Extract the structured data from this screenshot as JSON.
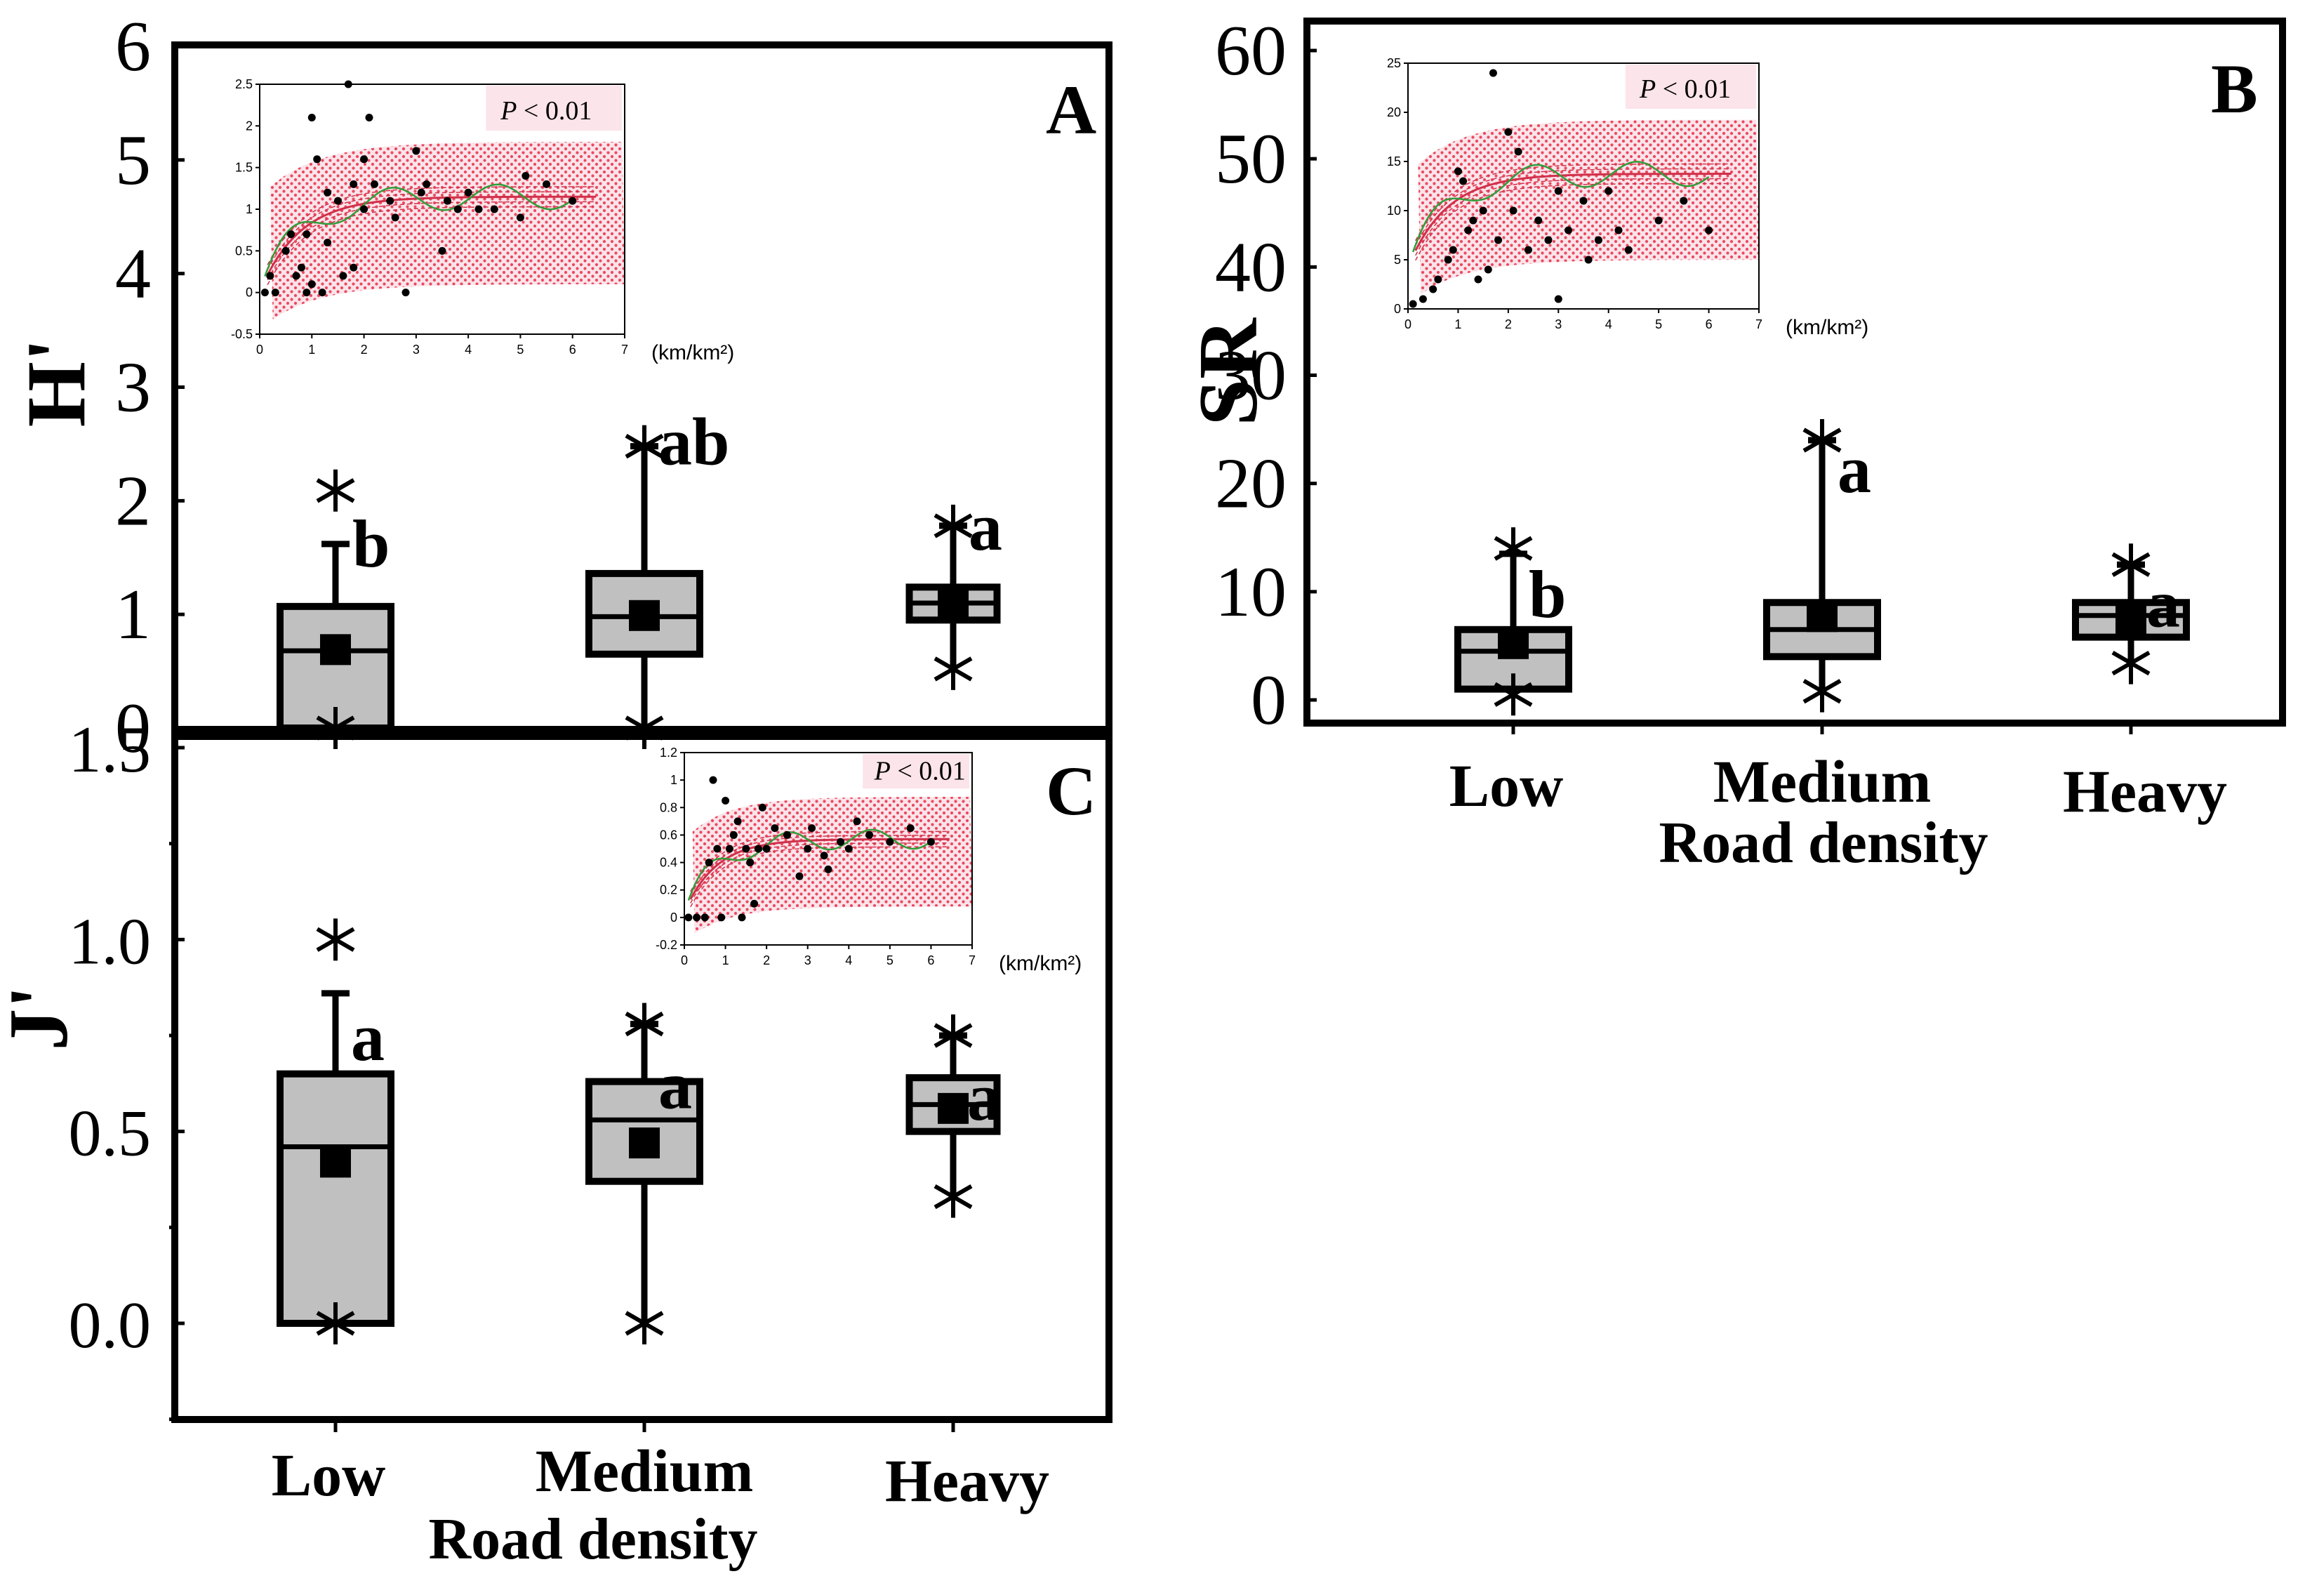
{
  "chart_data": [
    {
      "panel": "A",
      "type": "box",
      "ylabel": "H'",
      "ylim": [
        0,
        6
      ],
      "yticks": [
        0,
        1,
        2,
        3,
        4,
        5,
        6
      ],
      "xlabel": "",
      "categories": [
        "Low",
        "Medium",
        "Heavy"
      ],
      "boxes": [
        {
          "q1": 0.0,
          "median": 0.68,
          "q3": 1.07,
          "mean": 0.69,
          "whisker_low": 0.0,
          "whisker_high": 1.62,
          "min": 0.0,
          "max": 2.09,
          "letter": "b"
        },
        {
          "q1": 0.65,
          "median": 0.98,
          "q3": 1.36,
          "mean": 0.99,
          "whisker_low": 0.0,
          "whisker_high": 2.48,
          "min": 0.0,
          "max": 2.48,
          "letter": "ab"
        },
        {
          "q1": 0.95,
          "median": 1.1,
          "q3": 1.24,
          "mean": 1.1,
          "whisker_low": 0.52,
          "whisker_high": 1.78,
          "min": 0.52,
          "max": 1.78,
          "letter": "a"
        }
      ],
      "inset": {
        "xlim": [
          0,
          7
        ],
        "ylim": [
          -0.5,
          2.5
        ],
        "xticks": [
          0,
          1,
          2,
          3,
          4,
          5,
          6,
          7
        ],
        "yticks": [
          -0.5,
          0,
          0.5,
          1,
          1.5,
          2,
          2.5
        ],
        "xunit": "(km/km²)",
        "pvalue": "< 0.01",
        "points": [
          [
            0.1,
            0
          ],
          [
            0.2,
            0.2
          ],
          [
            0.3,
            0
          ],
          [
            0.5,
            0.5
          ],
          [
            0.6,
            0.7
          ],
          [
            0.7,
            0.2
          ],
          [
            0.8,
            0.3
          ],
          [
            0.9,
            0.7
          ],
          [
            0.9,
            0
          ],
          [
            1.0,
            0.1
          ],
          [
            1.0,
            2.1
          ],
          [
            1.1,
            1.6
          ],
          [
            1.2,
            0
          ],
          [
            1.3,
            0.6
          ],
          [
            1.3,
            1.2
          ],
          [
            1.5,
            1.1
          ],
          [
            1.6,
            0.2
          ],
          [
            1.7,
            2.5
          ],
          [
            1.8,
            0.3
          ],
          [
            1.8,
            1.3
          ],
          [
            2.0,
            1.0
          ],
          [
            2.0,
            1.6
          ],
          [
            2.1,
            2.1
          ],
          [
            2.2,
            1.3
          ],
          [
            2.5,
            1.1
          ],
          [
            2.6,
            0.9
          ],
          [
            2.8,
            0
          ],
          [
            3.0,
            1.7
          ],
          [
            3.1,
            1.2
          ],
          [
            3.2,
            1.3
          ],
          [
            3.5,
            0.5
          ],
          [
            3.6,
            1.1
          ],
          [
            3.8,
            1.0
          ],
          [
            4.0,
            1.2
          ],
          [
            4.2,
            1.0
          ],
          [
            4.5,
            1.0
          ],
          [
            5.0,
            0.9
          ],
          [
            5.1,
            1.4
          ],
          [
            5.5,
            1.3
          ],
          [
            6.0,
            1.1
          ]
        ]
      }
    },
    {
      "panel": "B",
      "type": "box",
      "ylabel": "SR",
      "ylim": [
        0,
        60
      ],
      "yticks": [
        0,
        10,
        20,
        30,
        40,
        50,
        60
      ],
      "xlabel": "Road density",
      "categories": [
        "Low",
        "Medium",
        "Heavy"
      ],
      "boxes": [
        {
          "q1": 1.0,
          "median": 4.5,
          "q3": 6.5,
          "mean": 5.2,
          "whisker_low": 0.5,
          "whisker_high": 13.5,
          "min": 0.5,
          "max": 14.0,
          "letter": "b"
        },
        {
          "q1": 4.0,
          "median": 6.5,
          "q3": 9.0,
          "mean": 7.7,
          "whisker_low": 0.8,
          "whisker_high": 24.0,
          "min": 0.8,
          "max": 24.0,
          "letter": "a"
        },
        {
          "q1": 5.8,
          "median": 7.8,
          "q3": 9.0,
          "mean": 7.3,
          "whisker_low": 3.4,
          "whisker_high": 12.5,
          "min": 3.4,
          "max": 12.5,
          "letter": "a"
        }
      ],
      "inset": {
        "xlim": [
          0,
          7
        ],
        "ylim": [
          0,
          25
        ],
        "xticks": [
          0,
          1,
          2,
          3,
          4,
          5,
          6,
          7
        ],
        "yticks": [
          0,
          5,
          10,
          15,
          20,
          25
        ],
        "xunit": "(km/km²)",
        "pvalue": "< 0.01",
        "points": [
          [
            0.1,
            0.5
          ],
          [
            0.3,
            1
          ],
          [
            0.5,
            2
          ],
          [
            0.6,
            3
          ],
          [
            0.8,
            5
          ],
          [
            0.9,
            6
          ],
          [
            1.0,
            14
          ],
          [
            1.1,
            13
          ],
          [
            1.2,
            8
          ],
          [
            1.3,
            9
          ],
          [
            1.4,
            3
          ],
          [
            1.5,
            10
          ],
          [
            1.6,
            4
          ],
          [
            1.7,
            24
          ],
          [
            1.8,
            7
          ],
          [
            2.0,
            18
          ],
          [
            2.1,
            10
          ],
          [
            2.2,
            16
          ],
          [
            2.4,
            6
          ],
          [
            2.6,
            9
          ],
          [
            2.8,
            7
          ],
          [
            3.0,
            1
          ],
          [
            3.0,
            12
          ],
          [
            3.2,
            8
          ],
          [
            3.5,
            11
          ],
          [
            3.6,
            5
          ],
          [
            3.8,
            7
          ],
          [
            4.0,
            12
          ],
          [
            4.2,
            8
          ],
          [
            4.4,
            6
          ],
          [
            5.0,
            9
          ],
          [
            5.5,
            11
          ],
          [
            6.0,
            8
          ]
        ]
      }
    },
    {
      "panel": "C",
      "type": "box",
      "ylabel": "J'",
      "ylim": [
        -0.25,
        1.5
      ],
      "yticks": [
        0.0,
        0.5,
        1.0,
        1.5
      ],
      "yticklabels": [
        "0.0",
        "0.5",
        "1.0",
        "1.5"
      ],
      "xlabel": "Road density",
      "categories": [
        "Low",
        "Medium",
        "Heavy"
      ],
      "boxes": [
        {
          "q1": 0.0,
          "median": 0.46,
          "q3": 0.65,
          "mean": 0.42,
          "whisker_low": 0.0,
          "whisker_high": 0.86,
          "min": 0.0,
          "max": 1.0,
          "letter": "a"
        },
        {
          "q1": 0.37,
          "median": 0.53,
          "q3": 0.63,
          "mean": 0.47,
          "whisker_low": 0.0,
          "whisker_high": 0.78,
          "min": 0.0,
          "max": 0.78,
          "letter": "a"
        },
        {
          "q1": 0.5,
          "median": 0.57,
          "q3": 0.64,
          "mean": 0.56,
          "whisker_low": 0.33,
          "whisker_high": 0.75,
          "min": 0.33,
          "max": 0.75,
          "letter": "a"
        }
      ],
      "inset": {
        "xlim": [
          0,
          7
        ],
        "ylim": [
          -0.2,
          1.2
        ],
        "xticks": [
          0,
          1,
          2,
          3,
          4,
          5,
          6,
          7
        ],
        "yticks": [
          -0.2,
          0,
          0.2,
          0.4,
          0.6,
          0.8,
          1.0,
          1.2
        ],
        "xunit": "(km/km²)",
        "pvalue": "< 0.01",
        "points": [
          [
            0.1,
            0
          ],
          [
            0.3,
            0
          ],
          [
            0.5,
            0
          ],
          [
            0.6,
            0.4
          ],
          [
            0.7,
            1.0
          ],
          [
            0.8,
            0.5
          ],
          [
            0.9,
            0
          ],
          [
            1.0,
            0.85
          ],
          [
            1.1,
            0.5
          ],
          [
            1.2,
            0.6
          ],
          [
            1.3,
            0.7
          ],
          [
            1.4,
            0
          ],
          [
            1.5,
            0.5
          ],
          [
            1.6,
            0.4
          ],
          [
            1.7,
            0.1
          ],
          [
            1.8,
            0.5
          ],
          [
            1.9,
            0.8
          ],
          [
            2.0,
            0.5
          ],
          [
            2.2,
            0.65
          ],
          [
            2.5,
            0.6
          ],
          [
            2.8,
            0.3
          ],
          [
            3.0,
            0.5
          ],
          [
            3.1,
            0.65
          ],
          [
            3.4,
            0.45
          ],
          [
            3.5,
            0.35
          ],
          [
            3.8,
            0.55
          ],
          [
            4.0,
            0.5
          ],
          [
            4.2,
            0.7
          ],
          [
            4.5,
            0.6
          ],
          [
            5.0,
            0.55
          ],
          [
            5.5,
            0.65
          ],
          [
            6.0,
            0.55
          ]
        ]
      }
    }
  ],
  "labels": {
    "panel_a": "A",
    "panel_b": "B",
    "panel_c": "C",
    "p_italic": "P",
    "road_density_b": "Road density",
    "road_density_c": "Road density"
  },
  "colors": {
    "box_fill": "#c0c0c0",
    "stroke": "#000000",
    "band_dots": "#e8384f",
    "band_fill": "#fbe4ea",
    "smooth_line": "#2f9e3a",
    "fit_line": "#d0304a"
  }
}
